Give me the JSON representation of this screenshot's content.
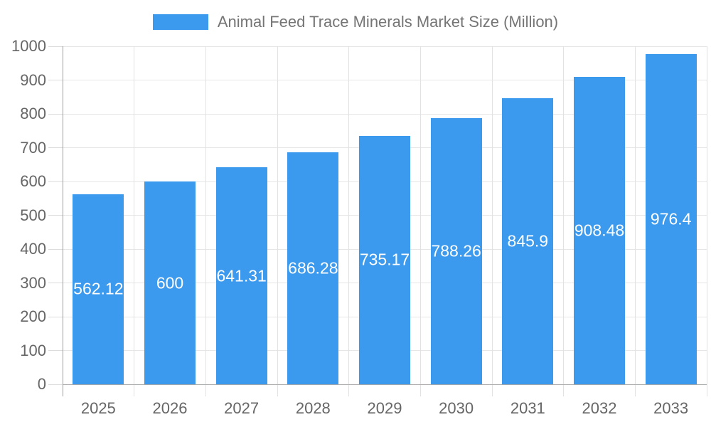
{
  "legend": {
    "label": "Animal Feed Trace Minerals Market Size (Million)"
  },
  "chart_data": {
    "type": "bar",
    "title": "Animal Feed Trace Minerals Market Size (Million)",
    "categories": [
      "2025",
      "2026",
      "2027",
      "2028",
      "2029",
      "2030",
      "2031",
      "2032",
      "2033"
    ],
    "values": [
      562.12,
      600,
      641.31,
      686.28,
      735.17,
      788.26,
      845.9,
      908.48,
      976.4
    ],
    "value_labels": [
      "562.12",
      "600",
      "641.31",
      "686.28",
      "735.17",
      "788.26",
      "845.9",
      "908.48",
      "976.4"
    ],
    "xlabel": "",
    "ylabel": "",
    "ylim": [
      0,
      1000
    ],
    "y_tick_step": 100,
    "y_tick_labels": [
      "0",
      "100",
      "200",
      "300",
      "400",
      "500",
      "600",
      "700",
      "800",
      "900",
      "1000"
    ],
    "grid": true,
    "legend_position": "top",
    "value_label_position": "inside-middle",
    "colors": {
      "bar": "#3B99EE",
      "grid": "#E6E6E6",
      "grid_v": "#E2E2E2",
      "y_axis_line": "#9E9E9E",
      "x_axis_line": "#AAAAAA",
      "tick": "#DCDCDC",
      "tick_label": "#666666",
      "legend_label": "#757575",
      "value_label": "#FFFFFF",
      "background": "#FFFFFF"
    }
  }
}
